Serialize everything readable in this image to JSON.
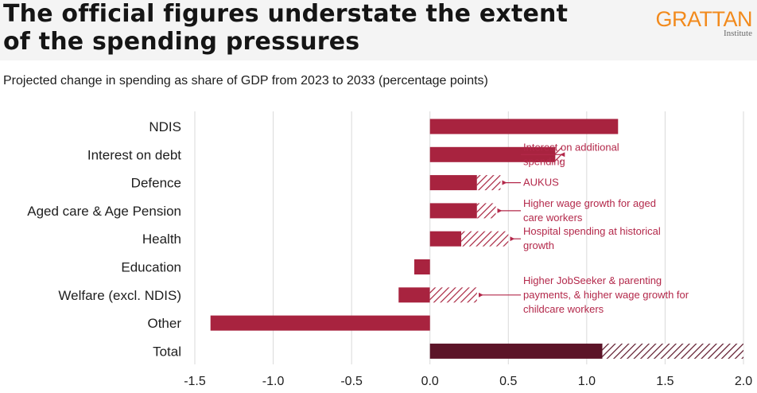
{
  "header": {
    "title_line1": "The official figures understate the extent",
    "title_line2": "of the spending pressures",
    "logo_text": "GRATTAN",
    "logo_sub": "Institute"
  },
  "colors": {
    "bar": "#a8233f",
    "bar_total": "#5c1428",
    "annotation": "#b3284a",
    "logo": "#f28a1c",
    "grid": "#d9d9d9"
  },
  "chart_data": {
    "type": "bar",
    "orientation": "horizontal",
    "title": "Projected change in spending as share of GDP from 2023 to 2033 (percentage points)",
    "categories": [
      "NDIS",
      "Interest on debt",
      "Defence",
      "Aged care & Age Pension",
      "Health",
      "Education",
      "Welfare (excl. NDIS)",
      "Other",
      "Total"
    ],
    "series": [
      {
        "values": [
          1.2,
          0.8,
          0.3,
          0.3,
          0.2,
          -0.1,
          -0.2,
          -1.4,
          1.1
        ]
      },
      {
        "values": [
          0,
          0.04,
          0.15,
          0.12,
          0.3,
          0,
          0.3,
          0,
          0.9
        ]
      }
    ],
    "xlim": [
      -1.5,
      2.0
    ],
    "xticks": [
      -1.5,
      -1.0,
      -0.5,
      0.0,
      0.5,
      1.0,
      1.5,
      2.0
    ],
    "xtick_labels": [
      "-1.5",
      "-1.0",
      "-0.5",
      "0.0",
      "0.5",
      "1.0",
      "1.5",
      "2.0"
    ],
    "grid": "vertical",
    "annotations": [
      {
        "category": "Interest on debt",
        "lines": [
          "Interest on additional",
          "spending"
        ]
      },
      {
        "category": "Defence",
        "lines": [
          "AUKUS"
        ]
      },
      {
        "category": "Aged care & Age Pension",
        "lines": [
          "Higher wage growth for aged",
          "care workers"
        ]
      },
      {
        "category": "Health",
        "lines": [
          "Hospital spending at historical",
          "growth"
        ]
      },
      {
        "category": "Welfare (excl. NDIS)",
        "lines": [
          "Higher JobSeeker & parenting",
          "payments, & higher wage growth for",
          "childcare workers"
        ]
      }
    ]
  }
}
